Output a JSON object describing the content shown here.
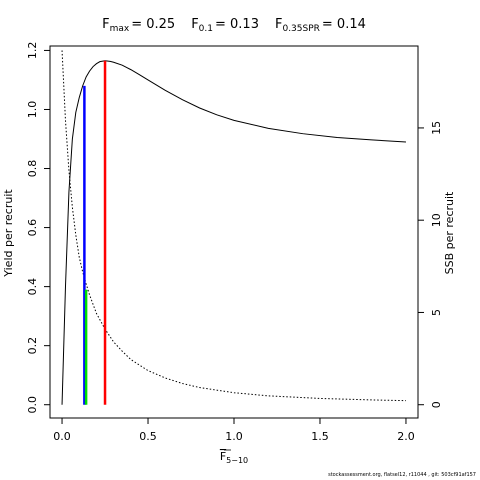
{
  "chart_data": {
    "type": "line",
    "title_parts": [
      {
        "base": "F",
        "sub": "max",
        "value": "= 0.25"
      },
      {
        "base": "F",
        "sub": "0.1",
        "value": "= 0.13"
      },
      {
        "base": "F",
        "sub": "0.35SPR",
        "value": "= 0.14"
      }
    ],
    "xlabel": {
      "base": "F",
      "sub": "5−10"
    },
    "ylabel_left": "Yield per recruit",
    "ylabel_right": "SSB per recruit",
    "xlim": [
      -0.07,
      2.07
    ],
    "ylim_left": [
      -0.045,
      1.215
    ],
    "ylim_right": [
      -0.72,
      19.44
    ],
    "x_ticks": [
      0,
      0.5,
      1,
      1.5,
      2
    ],
    "x_tick_labels": [
      "0.0",
      "0.5",
      "1.0",
      "1.5",
      "2.0"
    ],
    "y_ticks_left": [
      0,
      0.2,
      0.4,
      0.6,
      0.8,
      1.0,
      1.2
    ],
    "y_tick_labels_left": [
      "0.0",
      "0.2",
      "0.4",
      "0.6",
      "0.8",
      "1.0",
      "1.2"
    ],
    "y_ticks_right": [
      0,
      5,
      10,
      15
    ],
    "y_tick_labels_right": [
      "0",
      "5",
      "10",
      "15"
    ],
    "grid": false,
    "series": [
      {
        "axis": "left",
        "style": "solid",
        "color": "#000000",
        "x": [
          0.0,
          0.02,
          0.04,
          0.06,
          0.08,
          0.1,
          0.12,
          0.14,
          0.16,
          0.18,
          0.2,
          0.22,
          0.25,
          0.28,
          0.3,
          0.35,
          0.4,
          0.45,
          0.5,
          0.6,
          0.7,
          0.8,
          0.9,
          1.0,
          1.2,
          1.4,
          1.6,
          1.8,
          2.0
        ],
        "y": [
          0.0,
          0.4,
          0.72,
          0.9,
          0.99,
          1.04,
          1.08,
          1.11,
          1.13,
          1.145,
          1.155,
          1.162,
          1.165,
          1.163,
          1.16,
          1.15,
          1.135,
          1.118,
          1.1,
          1.065,
          1.033,
          1.005,
          0.982,
          0.963,
          0.936,
          0.918,
          0.905,
          0.897,
          0.89
        ]
      },
      {
        "axis": "right",
        "style": "dotted",
        "color": "#000000",
        "x": [
          0.0,
          0.02,
          0.04,
          0.06,
          0.08,
          0.1,
          0.12,
          0.14,
          0.16,
          0.2,
          0.25,
          0.3,
          0.35,
          0.4,
          0.5,
          0.6,
          0.7,
          0.8,
          1.0,
          1.2,
          1.5,
          1.8,
          2.0
        ],
        "y": [
          19.2,
          15.4,
          12.7,
          10.7,
          9.2,
          8.0,
          7.2,
          6.55,
          5.95,
          4.95,
          4.1,
          3.4,
          2.9,
          2.45,
          1.85,
          1.45,
          1.15,
          0.93,
          0.65,
          0.48,
          0.34,
          0.26,
          0.22
        ]
      }
    ],
    "reference_lines": [
      {
        "label": "Fmax",
        "x": 0.25,
        "y_from": 0,
        "y_to": 1.165,
        "color": "#ff0000"
      },
      {
        "label": "F0.1",
        "x": 0.13,
        "y_from": 0,
        "y_to": 1.08,
        "color": "#0000ff"
      },
      {
        "label": "F0.35SPR",
        "x": 0.14,
        "y_from": 0,
        "y_to": 0.39,
        "color": "#00dd00"
      }
    ]
  },
  "footer": "stockassessment.org, flatsel12, r11044 , git: 503cf91af157"
}
